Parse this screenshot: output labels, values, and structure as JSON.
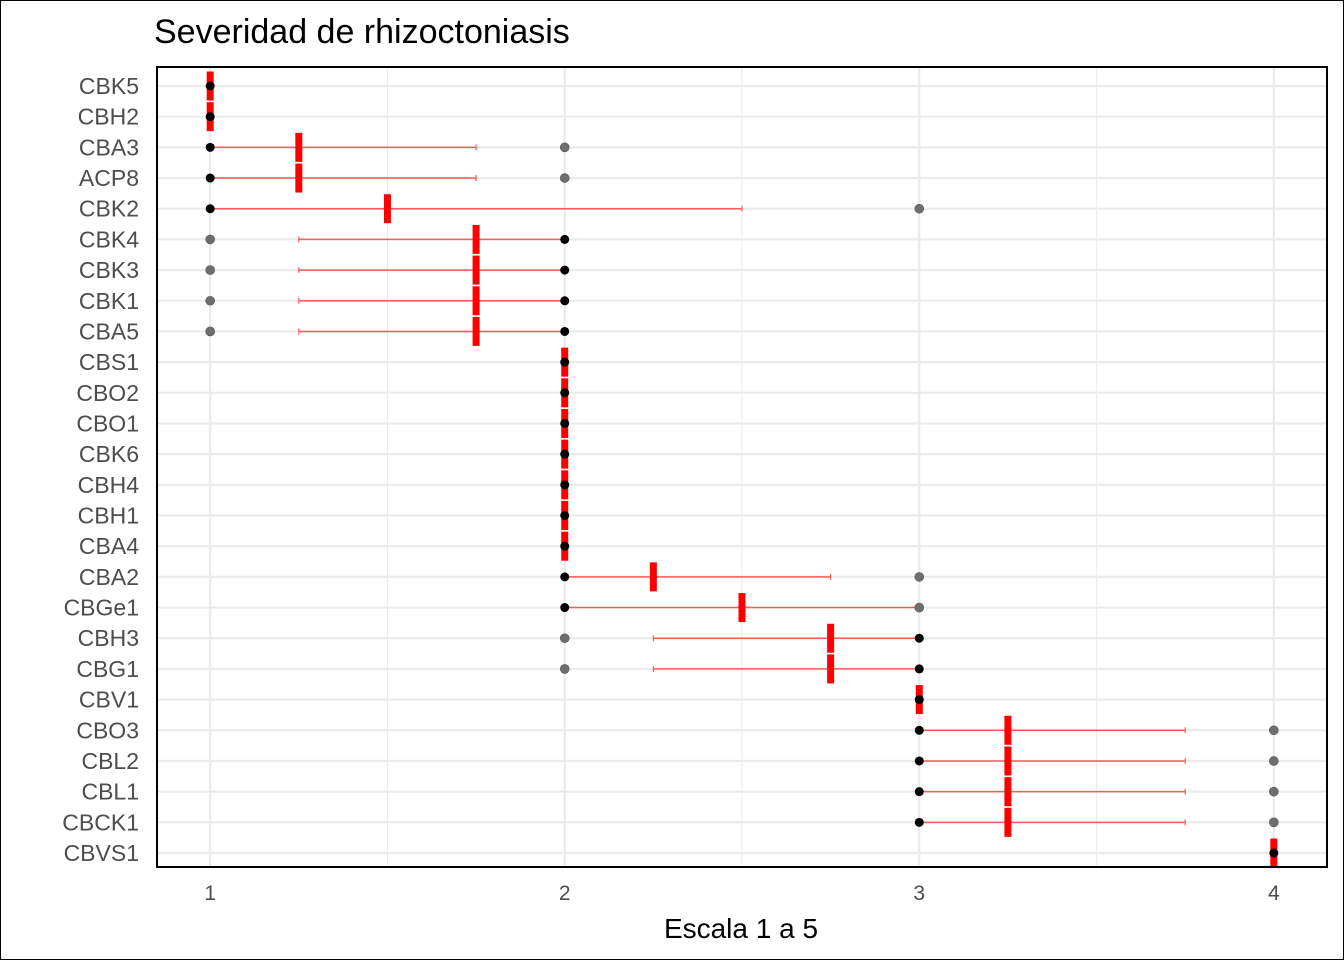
{
  "chart_data": {
    "type": "scatter",
    "title": "Severidad de rhizoctoniasis",
    "xlabel": "Escala 1 a 5",
    "ylabel": "",
    "xlim": [
      0.85,
      4.15
    ],
    "x_ticks": [
      "1",
      "2",
      "3",
      "4"
    ],
    "grid": true,
    "colors": {
      "mean": "#ff0000",
      "range": "#ff5a5a",
      "point": "#000000",
      "point_light": "#6e6e6e",
      "grid": "#ebebeb"
    },
    "categories": [
      "CBK5",
      "CBH2",
      "CBA3",
      "ACP8",
      "CBK2",
      "CBK4",
      "CBK3",
      "CBK1",
      "CBA5",
      "CBS1",
      "CBO2",
      "CBO1",
      "CBK6",
      "CBH4",
      "CBH1",
      "CBA4",
      "CBA2",
      "CBGe1",
      "CBH3",
      "CBG1",
      "CBV1",
      "CBO3",
      "CBL2",
      "CBL1",
      "CBCK1",
      "CBVS1"
    ],
    "series": [
      {
        "values": [
          {
            "points": [
              1
            ],
            "mean": 1,
            "range": [
              1,
              1
            ],
            "major": 1
          },
          {
            "points": [
              1
            ],
            "mean": 1,
            "range": [
              1,
              1
            ],
            "major": 1
          },
          {
            "points": [
              1,
              2
            ],
            "mean": 1.25,
            "range": [
              1,
              1.75
            ],
            "major": 1
          },
          {
            "points": [
              1,
              2
            ],
            "mean": 1.25,
            "range": [
              1,
              1.75
            ],
            "major": 1
          },
          {
            "points": [
              1,
              3
            ],
            "mean": 1.5,
            "range": [
              1,
              2.5
            ],
            "major": 1
          },
          {
            "points": [
              1,
              2
            ],
            "mean": 1.75,
            "range": [
              1.25,
              2
            ],
            "major": 2
          },
          {
            "points": [
              1,
              2
            ],
            "mean": 1.75,
            "range": [
              1.25,
              2
            ],
            "major": 2
          },
          {
            "points": [
              1,
              2
            ],
            "mean": 1.75,
            "range": [
              1.25,
              2
            ],
            "major": 2
          },
          {
            "points": [
              1,
              2
            ],
            "mean": 1.75,
            "range": [
              1.25,
              2
            ],
            "major": 2
          },
          {
            "points": [
              2
            ],
            "mean": 2,
            "range": [
              2,
              2
            ],
            "major": 2
          },
          {
            "points": [
              2
            ],
            "mean": 2,
            "range": [
              2,
              2
            ],
            "major": 2
          },
          {
            "points": [
              2
            ],
            "mean": 2,
            "range": [
              2,
              2
            ],
            "major": 2
          },
          {
            "points": [
              2
            ],
            "mean": 2,
            "range": [
              2,
              2
            ],
            "major": 2
          },
          {
            "points": [
              2
            ],
            "mean": 2,
            "range": [
              2,
              2
            ],
            "major": 2
          },
          {
            "points": [
              2
            ],
            "mean": 2,
            "range": [
              2,
              2
            ],
            "major": 2
          },
          {
            "points": [
              2
            ],
            "mean": 2,
            "range": [
              2,
              2
            ],
            "major": 2
          },
          {
            "points": [
              2,
              3
            ],
            "mean": 2.25,
            "range": [
              2,
              2.75
            ],
            "major": 2
          },
          {
            "points": [
              2,
              3
            ],
            "mean": 2.5,
            "range": [
              2,
              3
            ],
            "major": 2
          },
          {
            "points": [
              2,
              3
            ],
            "mean": 2.75,
            "range": [
              2.25,
              3
            ],
            "major": 3
          },
          {
            "points": [
              2,
              3
            ],
            "mean": 2.75,
            "range": [
              2.25,
              3
            ],
            "major": 3
          },
          {
            "points": [
              3
            ],
            "mean": 3,
            "range": [
              3,
              3
            ],
            "major": 3
          },
          {
            "points": [
              3,
              4
            ],
            "mean": 3.25,
            "range": [
              3,
              3.75
            ],
            "major": 3
          },
          {
            "points": [
              3,
              4
            ],
            "mean": 3.25,
            "range": [
              3,
              3.75
            ],
            "major": 3
          },
          {
            "points": [
              3,
              4
            ],
            "mean": 3.25,
            "range": [
              3,
              3.75
            ],
            "major": 3
          },
          {
            "points": [
              3,
              4
            ],
            "mean": 3.25,
            "range": [
              3,
              3.75
            ],
            "major": 3
          },
          {
            "points": [
              4
            ],
            "mean": 4,
            "range": [
              4,
              4
            ],
            "major": 4
          }
        ]
      }
    ]
  }
}
